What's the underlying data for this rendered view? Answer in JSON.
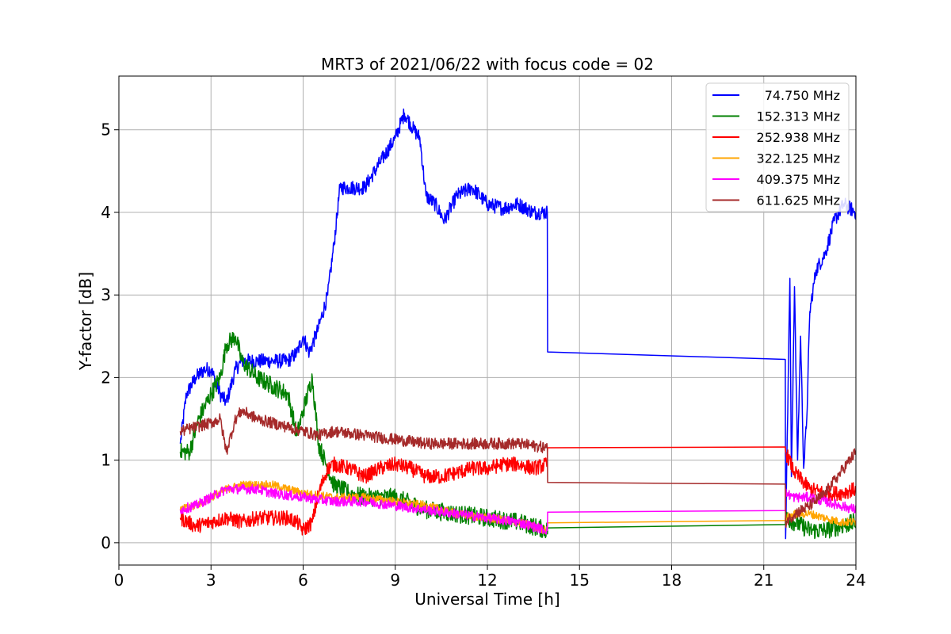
{
  "chart_data": {
    "type": "line",
    "title": "MRT3 of 2021/06/22 with focus code = 02",
    "xlabel": "Universal Time [h]",
    "ylabel": "Y-factor [dB]",
    "xlim": [
      0,
      24
    ],
    "ylim": [
      -0.27,
      5.65
    ],
    "xticks": [
      0,
      3,
      6,
      9,
      12,
      15,
      18,
      21,
      24
    ],
    "yticks": [
      0,
      1,
      2,
      3,
      4,
      5
    ],
    "grid": true,
    "legend": "top-right",
    "series": [
      {
        "name": "74.750 MHz",
        "color": "#0000ff",
        "noise": 0.09,
        "x": [
          2.0,
          2.2,
          2.5,
          2.8,
          3.0,
          3.3,
          3.5,
          3.8,
          4.0,
          4.5,
          5.0,
          5.5,
          5.8,
          6.0,
          6.2,
          6.5,
          6.8,
          7.0,
          7.2,
          7.5,
          8.0,
          8.5,
          9.0,
          9.3,
          9.6,
          9.8,
          10.0,
          10.3,
          10.6,
          11.0,
          11.5,
          12.0,
          12.5,
          13.0,
          13.5,
          13.95,
          13.96,
          21.7,
          21.71,
          21.85,
          21.9,
          22.0,
          22.1,
          22.2,
          22.3,
          22.4,
          22.5,
          22.7,
          23.0,
          23.3,
          23.6,
          24.0
        ],
        "y": [
          1.2,
          1.8,
          2.0,
          2.1,
          2.1,
          1.8,
          1.7,
          2.1,
          2.2,
          2.2,
          2.2,
          2.2,
          2.3,
          2.5,
          2.3,
          2.6,
          3.0,
          3.6,
          4.3,
          4.3,
          4.3,
          4.6,
          4.9,
          5.2,
          5.0,
          4.9,
          4.2,
          4.1,
          3.9,
          4.2,
          4.3,
          4.1,
          4.05,
          4.1,
          4.0,
          4.0,
          2.31,
          2.22,
          0.05,
          3.2,
          0.8,
          3.1,
          1.0,
          2.5,
          0.9,
          1.5,
          2.8,
          3.3,
          3.5,
          3.9,
          4.1,
          4.0
        ]
      },
      {
        "name": "152.313 MHz",
        "color": "#008000",
        "noise": 0.11,
        "x": [
          2.0,
          2.3,
          2.6,
          3.0,
          3.3,
          3.5,
          3.8,
          4.0,
          4.5,
          5.0,
          5.5,
          5.8,
          6.0,
          6.3,
          6.5,
          6.8,
          7.0,
          7.5,
          8.0,
          9.0,
          10.0,
          11.0,
          12.0,
          13.0,
          13.95,
          13.96,
          21.7,
          21.71,
          22.0,
          22.5,
          23.0,
          23.5,
          24.0
        ],
        "y": [
          1.1,
          1.1,
          1.5,
          1.8,
          2.0,
          2.4,
          2.5,
          2.2,
          2.0,
          1.9,
          1.8,
          1.3,
          1.6,
          2.0,
          1.2,
          0.9,
          0.7,
          0.6,
          0.55,
          0.55,
          0.4,
          0.35,
          0.3,
          0.25,
          0.15,
          0.18,
          0.22,
          0.3,
          0.25,
          0.15,
          0.15,
          0.2,
          0.25
        ]
      },
      {
        "name": "252.938 MHz",
        "color": "#ff0000",
        "noise": 0.09,
        "x": [
          2.0,
          2.5,
          3.0,
          3.5,
          4.0,
          4.5,
          5.0,
          5.5,
          5.8,
          6.0,
          6.3,
          6.5,
          6.8,
          7.0,
          7.5,
          8.0,
          8.5,
          9.0,
          9.5,
          10.0,
          10.5,
          11.0,
          11.5,
          12.0,
          12.5,
          13.0,
          13.5,
          13.95,
          13.96,
          21.7,
          21.71,
          22.0,
          22.5,
          23.0,
          23.5,
          24.0
        ],
        "y": [
          0.3,
          0.2,
          0.25,
          0.3,
          0.25,
          0.3,
          0.3,
          0.3,
          0.25,
          0.15,
          0.25,
          0.6,
          0.9,
          0.95,
          0.9,
          0.8,
          0.9,
          0.95,
          0.9,
          0.8,
          0.8,
          0.85,
          0.9,
          0.9,
          0.95,
          0.95,
          0.9,
          0.95,
          1.15,
          1.16,
          1.1,
          0.85,
          0.65,
          0.6,
          0.6,
          0.65
        ]
      },
      {
        "name": "322.125 MHz",
        "color": "#ffa500",
        "noise": 0.05,
        "x": [
          2.0,
          2.5,
          3.0,
          3.5,
          4.0,
          4.5,
          5.0,
          6.0,
          7.0,
          8.0,
          9.0,
          10.0,
          11.0,
          12.0,
          13.0,
          13.95,
          13.96,
          21.7,
          21.71,
          22.0,
          22.5,
          23.0,
          23.5,
          24.0
        ],
        "y": [
          0.4,
          0.45,
          0.55,
          0.65,
          0.7,
          0.7,
          0.7,
          0.6,
          0.55,
          0.55,
          0.5,
          0.45,
          0.35,
          0.3,
          0.25,
          0.15,
          0.24,
          0.27,
          0.3,
          0.35,
          0.35,
          0.3,
          0.25,
          0.25
        ]
      },
      {
        "name": "409.375 MHz",
        "color": "#ff00ff",
        "noise": 0.06,
        "x": [
          2.0,
          2.5,
          3.0,
          3.5,
          4.0,
          4.5,
          5.0,
          6.0,
          7.0,
          8.0,
          9.0,
          10.0,
          11.0,
          12.0,
          13.0,
          13.95,
          13.96,
          21.7,
          21.71,
          22.0,
          22.5,
          23.0,
          23.5,
          24.0
        ],
        "y": [
          0.4,
          0.45,
          0.55,
          0.65,
          0.65,
          0.65,
          0.6,
          0.55,
          0.5,
          0.5,
          0.45,
          0.4,
          0.35,
          0.3,
          0.25,
          0.15,
          0.37,
          0.39,
          0.6,
          0.55,
          0.55,
          0.5,
          0.45,
          0.4
        ]
      },
      {
        "name": "611.625 MHz",
        "color": "#a52a2a",
        "noise": 0.07,
        "x": [
          2.0,
          2.5,
          3.0,
          3.3,
          3.5,
          3.8,
          4.0,
          4.5,
          5.0,
          5.5,
          6.0,
          6.5,
          7.0,
          8.0,
          9.0,
          10.0,
          11.0,
          12.0,
          13.0,
          13.95,
          13.96,
          21.7,
          21.71,
          22.0,
          22.5,
          23.0,
          23.5,
          24.0
        ],
        "y": [
          1.35,
          1.4,
          1.45,
          1.5,
          1.1,
          1.5,
          1.6,
          1.5,
          1.45,
          1.4,
          1.35,
          1.3,
          1.35,
          1.3,
          1.25,
          1.2,
          1.2,
          1.2,
          1.2,
          1.15,
          0.73,
          0.71,
          0.25,
          0.35,
          0.45,
          0.6,
          0.85,
          1.1
        ]
      }
    ]
  }
}
